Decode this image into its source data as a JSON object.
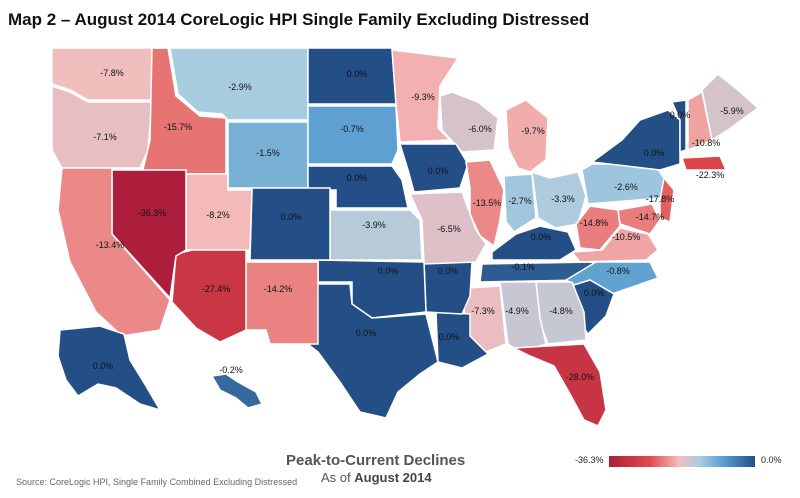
{
  "title": "Map 2 – August 2014 CoreLogic HPI Single Family Excluding Distressed",
  "source": "Source: CoreLogic HPI, Single Family Combined Excluding Distressed",
  "legend": {
    "title": "Peak-to-Current Declines",
    "subtitle_prefix": "As of",
    "subtitle_date": "August 2014",
    "min_label": "-36.3%",
    "max_label": "0.0%"
  },
  "colors": {
    "scale_min": "#ad1e3c",
    "scale_mid_red": "#e04b4b",
    "scale_light_red": "#f4bcbc",
    "scale_light_blue": "#aacde0",
    "scale_mid_blue": "#5b9ed0",
    "scale_max": "#234f86"
  },
  "chart_data": {
    "type": "choropleth",
    "metric": "Peak-to-Current Declines (%)",
    "range": [
      -36.3,
      0.0
    ],
    "states": [
      {
        "state": "WA",
        "label": "-7.8%",
        "value": -7.8
      },
      {
        "state": "OR",
        "label": "-7.1%",
        "value": -7.1
      },
      {
        "state": "ID",
        "label": "-15.7%",
        "value": -15.7
      },
      {
        "state": "MT",
        "label": "-2.9%",
        "value": -2.9
      },
      {
        "state": "WY",
        "label": "-1.5%",
        "value": -1.5
      },
      {
        "state": "ND",
        "label": "0.0%",
        "value": 0.0
      },
      {
        "state": "SD",
        "label": "-0.7%",
        "value": -0.7
      },
      {
        "state": "NE",
        "label": "0.0%",
        "value": 0.0
      },
      {
        "state": "MN",
        "label": "-9.3%",
        "value": -9.3
      },
      {
        "state": "WI",
        "label": "-6.0%",
        "value": -6.0
      },
      {
        "state": "MI",
        "label": "-9.7%",
        "value": -9.7
      },
      {
        "state": "IA",
        "label": "0.0%",
        "value": 0.0
      },
      {
        "state": "IL",
        "label": "-13.5%",
        "value": -13.5
      },
      {
        "state": "IN",
        "label": "-2.7%",
        "value": -2.7
      },
      {
        "state": "OH",
        "label": "-3.3%",
        "value": -3.3
      },
      {
        "state": "PA",
        "label": "-2.6%",
        "value": -2.6
      },
      {
        "state": "NY",
        "label": "0.0%",
        "value": 0.0
      },
      {
        "state": "VT",
        "label": "0.0%",
        "value": 0.0
      },
      {
        "state": "NH",
        "label": "-10.8%",
        "value": -10.8
      },
      {
        "state": "ME",
        "label": "-5.9%",
        "value": -5.9
      },
      {
        "state": "MA",
        "label": "-22.3%",
        "value": -22.3
      },
      {
        "state": "NJ",
        "label": "-17.8%",
        "value": -17.8
      },
      {
        "state": "MD",
        "label": "-14.7%",
        "value": -14.7
      },
      {
        "state": "WV",
        "label": "-14.8%",
        "value": -14.8
      },
      {
        "state": "VA",
        "label": "-10.5%",
        "value": -10.5
      },
      {
        "state": "KY",
        "label": "0.0%",
        "value": 0.0
      },
      {
        "state": "TN",
        "label": "-0.1%",
        "value": -0.1
      },
      {
        "state": "NC",
        "label": "-0.8%",
        "value": -0.8
      },
      {
        "state": "SC",
        "label": "0.0%",
        "value": 0.0
      },
      {
        "state": "GA",
        "label": "-4.8%",
        "value": -4.8
      },
      {
        "state": "AL",
        "label": "-4.9%",
        "value": -4.9
      },
      {
        "state": "MS",
        "label": "-7.3%",
        "value": -7.3
      },
      {
        "state": "FL",
        "label": "-28.0%",
        "value": -28.0
      },
      {
        "state": "LA",
        "label": "0.0%",
        "value": 0.0
      },
      {
        "state": "AR",
        "label": "0.0%",
        "value": 0.0
      },
      {
        "state": "MO",
        "label": "-6.5%",
        "value": -6.5
      },
      {
        "state": "KS",
        "label": "-3.9%",
        "value": -3.9
      },
      {
        "state": "OK",
        "label": "0.0%",
        "value": 0.0
      },
      {
        "state": "TX",
        "label": "0.0%",
        "value": 0.0
      },
      {
        "state": "CO",
        "label": "0.0%",
        "value": 0.0
      },
      {
        "state": "NM",
        "label": "-14.2%",
        "value": -14.2
      },
      {
        "state": "AZ",
        "label": "-27.4%",
        "value": -27.4
      },
      {
        "state": "UT",
        "label": "-8.2%",
        "value": -8.2
      },
      {
        "state": "NV",
        "label": "-36.3%",
        "value": -36.3
      },
      {
        "state": "CA",
        "label": "-13.4%",
        "value": -13.4
      },
      {
        "state": "AK",
        "label": "0.0%",
        "value": 0.0
      },
      {
        "state": "HI",
        "label": "-0.2%",
        "value": -0.2
      }
    ]
  }
}
